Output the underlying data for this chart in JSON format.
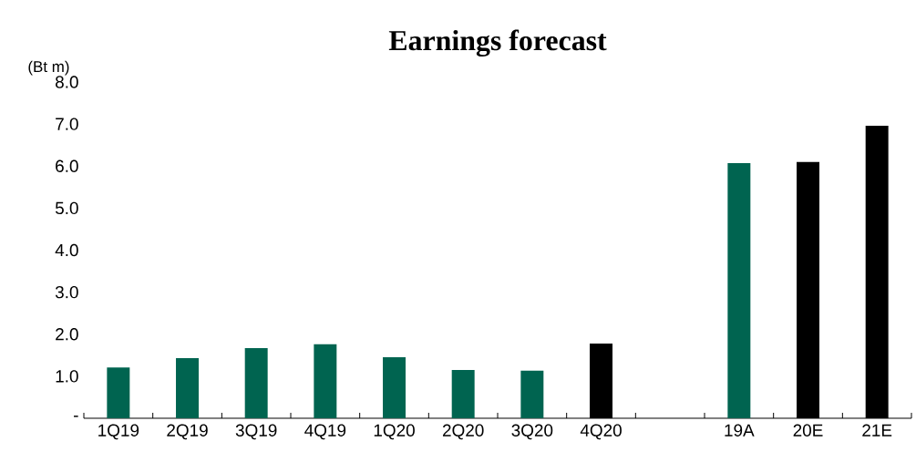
{
  "chart_data": {
    "type": "bar",
    "title": "Earnings forecast",
    "ylabel": "(Bt m)",
    "categories": [
      "1Q19",
      "2Q19",
      "3Q19",
      "4Q19",
      "1Q20",
      "2Q20",
      "3Q20",
      "4Q20",
      null,
      "19A",
      "20E",
      "21E"
    ],
    "values": [
      1.21,
      1.43,
      1.67,
      1.76,
      1.45,
      1.15,
      1.13,
      1.78,
      null,
      6.07,
      6.1,
      6.96
    ],
    "colors": [
      "#006450",
      "#006450",
      "#006450",
      "#006450",
      "#006450",
      "#006450",
      "#006450",
      "#000000",
      null,
      "#006450",
      "#000000",
      "#000000"
    ],
    "ylim": [
      0,
      8
    ],
    "yticks": [
      {
        "value": 0,
        "label": "-"
      },
      {
        "value": 1,
        "label": "1.0"
      },
      {
        "value": 2,
        "label": "2.0"
      },
      {
        "value": 3,
        "label": "3.0"
      },
      {
        "value": 4,
        "label": "4.0"
      },
      {
        "value": 5,
        "label": "5.0"
      },
      {
        "value": 6,
        "label": "6.0"
      },
      {
        "value": 7,
        "label": "7.0"
      },
      {
        "value": 8,
        "label": "8.0"
      }
    ],
    "grid": false
  }
}
